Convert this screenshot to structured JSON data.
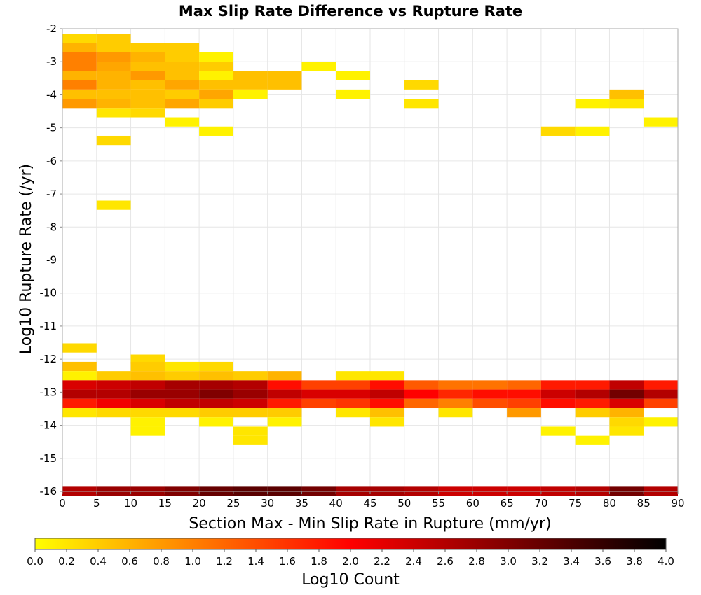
{
  "chart_data": {
    "type": "heatmap",
    "title": "Max Slip Rate Difference vs Rupture Rate",
    "xlabel": "Section Max - Min Slip Rate in Rupture (mm/yr)",
    "ylabel": "Log10 Rupture Rate (/yr)",
    "xlim": [
      0,
      90
    ],
    "ylim": [
      -16,
      -2
    ],
    "x_ticks": [
      0,
      5,
      10,
      15,
      20,
      25,
      30,
      35,
      40,
      45,
      50,
      55,
      60,
      65,
      70,
      75,
      80,
      85,
      90
    ],
    "y_ticks": [
      -2,
      -3,
      -4,
      -5,
      -6,
      -7,
      -8,
      -9,
      -10,
      -11,
      -12,
      -13,
      -14,
      -15,
      -16
    ],
    "grid": true,
    "bin_width_x": 5,
    "bin_height_y": 0.28,
    "colorbar": {
      "label": "Log10 Count",
      "min": 0.0,
      "max": 4.0,
      "ticks": [
        "0.0",
        "0.2",
        "0.4",
        "0.6",
        "0.8",
        "1.0",
        "1.2",
        "1.4",
        "1.6",
        "1.8",
        "2.0",
        "2.2",
        "2.4",
        "2.6",
        "2.8",
        "3.0",
        "3.2",
        "3.4",
        "3.6",
        "3.8",
        "4.0"
      ],
      "position": "bottom",
      "colors": [
        "#ffff00",
        "#ff8000",
        "#ff0000",
        "#800000",
        "#000000"
      ]
    },
    "columns": [
      {
        "x": 0,
        "cells": [
          [
            -2.3,
            0.3
          ],
          [
            -2.58,
            0.6
          ],
          [
            -2.86,
            1.0
          ],
          [
            -3.14,
            1.0
          ],
          [
            -3.42,
            0.6
          ],
          [
            -3.7,
            1.0
          ],
          [
            -3.98,
            0.5
          ],
          [
            -4.26,
            0.8
          ],
          [
            -11.66,
            0.3
          ],
          [
            -12.22,
            0.5
          ],
          [
            -12.5,
            0.1
          ],
          [
            -12.78,
            2.3
          ],
          [
            -13.06,
            2.6
          ],
          [
            -13.34,
            1.8
          ],
          [
            -13.62,
            0.2
          ],
          [
            -16.0,
            2.6
          ]
        ]
      },
      {
        "x": 5,
        "cells": [
          [
            -2.3,
            0.4
          ],
          [
            -2.58,
            0.4
          ],
          [
            -2.86,
            0.8
          ],
          [
            -3.14,
            0.7
          ],
          [
            -3.42,
            0.6
          ],
          [
            -3.7,
            0.6
          ],
          [
            -3.98,
            0.5
          ],
          [
            -4.26,
            0.6
          ],
          [
            -4.54,
            0.2
          ],
          [
            -5.38,
            0.3
          ],
          [
            -7.34,
            0.2
          ],
          [
            -12.5,
            0.4
          ],
          [
            -12.78,
            2.4
          ],
          [
            -13.06,
            2.6
          ],
          [
            -13.34,
            2.1
          ],
          [
            -13.62,
            0.3
          ],
          [
            -16.0,
            2.8
          ]
        ]
      },
      {
        "x": 10,
        "cells": [
          [
            -2.58,
            0.4
          ],
          [
            -2.86,
            0.6
          ],
          [
            -3.14,
            0.5
          ],
          [
            -3.42,
            0.8
          ],
          [
            -3.7,
            0.5
          ],
          [
            -3.98,
            0.5
          ],
          [
            -4.26,
            0.5
          ],
          [
            -4.54,
            0.3
          ],
          [
            -12.0,
            0.3
          ],
          [
            -12.22,
            0.4
          ],
          [
            -12.5,
            0.5
          ],
          [
            -12.78,
            2.5
          ],
          [
            -13.06,
            2.8
          ],
          [
            -13.34,
            2.3
          ],
          [
            -13.62,
            0.3
          ],
          [
            -13.9,
            0.1
          ],
          [
            -14.18,
            0.1
          ],
          [
            -16.0,
            2.8
          ]
        ]
      },
      {
        "x": 15,
        "cells": [
          [
            -2.58,
            0.4
          ],
          [
            -2.86,
            0.4
          ],
          [
            -3.14,
            0.5
          ],
          [
            -3.42,
            0.5
          ],
          [
            -3.7,
            0.7
          ],
          [
            -3.98,
            0.4
          ],
          [
            -4.26,
            0.7
          ],
          [
            -4.82,
            0.1
          ],
          [
            -12.22,
            0.2
          ],
          [
            -12.5,
            0.4
          ],
          [
            -12.78,
            2.7
          ],
          [
            -13.06,
            2.8
          ],
          [
            -13.34,
            2.5
          ],
          [
            -13.62,
            0.3
          ],
          [
            -16.0,
            3.0
          ]
        ]
      },
      {
        "x": 20,
        "cells": [
          [
            -2.86,
            0.1
          ],
          [
            -3.14,
            0.4
          ],
          [
            -3.42,
            0.1
          ],
          [
            -3.7,
            0.5
          ],
          [
            -3.98,
            0.7
          ],
          [
            -4.26,
            0.4
          ],
          [
            -5.1,
            0.1
          ],
          [
            -12.22,
            0.3
          ],
          [
            -12.5,
            0.5
          ],
          [
            -12.78,
            2.7
          ],
          [
            -13.06,
            3.0
          ],
          [
            -13.34,
            2.5
          ],
          [
            -13.62,
            0.4
          ],
          [
            -13.9,
            0.1
          ],
          [
            -16.0,
            3.2
          ]
        ]
      },
      {
        "x": 25,
        "cells": [
          [
            -3.42,
            0.5
          ],
          [
            -3.7,
            0.5
          ],
          [
            -3.98,
            0.1
          ],
          [
            -12.5,
            0.4
          ],
          [
            -12.78,
            2.6
          ],
          [
            -13.06,
            2.8
          ],
          [
            -13.34,
            2.4
          ],
          [
            -13.62,
            0.4
          ],
          [
            -14.18,
            0.2
          ],
          [
            -14.46,
            0.2
          ],
          [
            -16.0,
            3.3
          ]
        ]
      },
      {
        "x": 30,
        "cells": [
          [
            -3.42,
            0.5
          ],
          [
            -3.7,
            0.5
          ],
          [
            -12.5,
            0.6
          ],
          [
            -12.78,
            1.9
          ],
          [
            -13.06,
            2.5
          ],
          [
            -13.34,
            1.8
          ],
          [
            -13.62,
            0.4
          ],
          [
            -13.9,
            0.1
          ],
          [
            -16.0,
            3.3
          ]
        ]
      },
      {
        "x": 35,
        "cells": [
          [
            -3.14,
            0.1
          ],
          [
            -12.78,
            1.5
          ],
          [
            -13.06,
            2.3
          ],
          [
            -13.34,
            1.5
          ],
          [
            -16.0,
            3.1
          ]
        ]
      },
      {
        "x": 40,
        "cells": [
          [
            -3.42,
            0.1
          ],
          [
            -3.98,
            0.1
          ],
          [
            -12.5,
            0.2
          ],
          [
            -12.78,
            1.5
          ],
          [
            -13.06,
            2.3
          ],
          [
            -13.34,
            1.6
          ],
          [
            -13.62,
            0.2
          ],
          [
            -16.0,
            2.7
          ]
        ]
      },
      {
        "x": 45,
        "cells": [
          [
            -12.5,
            0.2
          ],
          [
            -12.78,
            1.9
          ],
          [
            -13.06,
            2.5
          ],
          [
            -13.34,
            1.9
          ],
          [
            -13.62,
            0.5
          ],
          [
            -13.9,
            0.2
          ],
          [
            -16.0,
            2.7
          ]
        ]
      },
      {
        "x": 50,
        "cells": [
          [
            -3.7,
            0.3
          ],
          [
            -4.26,
            0.2
          ],
          [
            -12.78,
            1.3
          ],
          [
            -13.06,
            2.0
          ],
          [
            -13.34,
            1.2
          ],
          [
            -16.0,
            2.6
          ]
        ]
      },
      {
        "x": 55,
        "cells": [
          [
            -12.78,
            1.1
          ],
          [
            -13.06,
            1.7
          ],
          [
            -13.34,
            1.0
          ],
          [
            -13.62,
            0.2
          ],
          [
            -16.0,
            2.4
          ]
        ]
      },
      {
        "x": 60,
        "cells": [
          [
            -12.78,
            1.1
          ],
          [
            -13.06,
            1.9
          ],
          [
            -13.34,
            1.4
          ],
          [
            -16.0,
            2.4
          ]
        ]
      },
      {
        "x": 65,
        "cells": [
          [
            -12.78,
            1.2
          ],
          [
            -13.06,
            1.9
          ],
          [
            -13.34,
            1.5
          ],
          [
            -13.62,
            0.8
          ],
          [
            -16.0,
            2.4
          ]
        ]
      },
      {
        "x": 70,
        "cells": [
          [
            -5.1,
            0.3
          ],
          [
            -12.78,
            1.8
          ],
          [
            -13.06,
            2.4
          ],
          [
            -13.34,
            1.9
          ],
          [
            -14.18,
            0.1
          ],
          [
            -16.0,
            2.5
          ]
        ]
      },
      {
        "x": 75,
        "cells": [
          [
            -4.26,
            0.1
          ],
          [
            -5.1,
            0.1
          ],
          [
            -12.78,
            1.8
          ],
          [
            -13.06,
            2.6
          ],
          [
            -13.34,
            1.8
          ],
          [
            -13.62,
            0.4
          ],
          [
            -14.46,
            0.1
          ],
          [
            -16.0,
            2.6
          ]
        ]
      },
      {
        "x": 80,
        "cells": [
          [
            -3.98,
            0.5
          ],
          [
            -4.26,
            0.2
          ],
          [
            -12.78,
            2.5
          ],
          [
            -13.06,
            3.1
          ],
          [
            -13.34,
            2.3
          ],
          [
            -13.62,
            0.6
          ],
          [
            -13.9,
            0.3
          ],
          [
            -14.18,
            0.2
          ],
          [
            -16.0,
            3.1
          ]
        ]
      },
      {
        "x": 85,
        "cells": [
          [
            -4.82,
            0.1
          ],
          [
            -12.78,
            1.8
          ],
          [
            -13.06,
            2.6
          ],
          [
            -13.34,
            1.5
          ],
          [
            -13.9,
            0.1
          ],
          [
            -16.0,
            2.6
          ]
        ]
      }
    ]
  }
}
